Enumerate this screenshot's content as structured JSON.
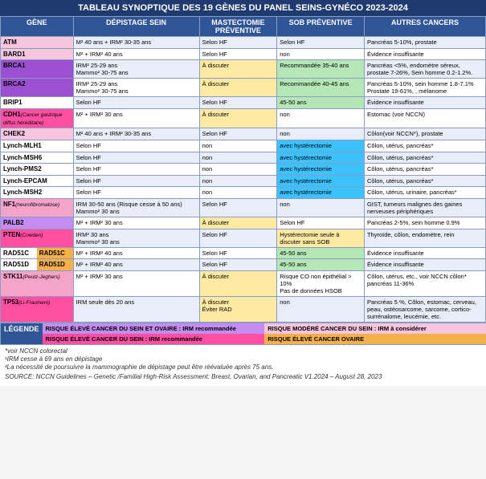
{
  "title": "TABLEAU SYNOPTIQUE DES 19 GÈNES DU PANEL SEINS-GYNÉCO 2023-2024",
  "columns": [
    "GÈNE",
    "DÉPISTAGE SEIN",
    "MASTECTOMIE PRÉVENTIVE",
    "SOB PRÉVENTIVE",
    "AUTRES CANCERS"
  ],
  "colwidths": [
    "15%",
    "26%",
    "16%",
    "18%",
    "25%"
  ],
  "colors": {
    "header_bg": "#2f5597",
    "header_fg": "#ffffff",
    "title_bg": "#1f3a6e",
    "row_odd": "#e8edf7",
    "row_even": "#ffffff",
    "border": "#8a9bc4",
    "alt_green": "#b5e6b5",
    "alt_yellow": "#ffe9a3",
    "sob_blue": "#3cc3ff",
    "gene_palette": {
      "lightpink": "#f7c6de",
      "pink": "#f5a3c8",
      "magenta": "#e860b0",
      "hotpink": "#ff4fa3",
      "purple": "#9b4fd1",
      "violet": "#c38df0",
      "lavender": "#d7bff2",
      "plum": "#b657c4",
      "white": "#ffffff",
      "orange": "#f4b04a"
    }
  },
  "rows": [
    {
      "gene": "ATM",
      "gc": "lightpink",
      "dep": "M² 40 ans + IRM² 30-35 ans",
      "mast": "Selon HF",
      "sob": "Selon HF",
      "other": "Pancréas 5-10%, prostate"
    },
    {
      "gene": "BARD1",
      "gc": "lightpink",
      "dep": "M² + IRM² 40 ans",
      "mast": "Selon HF",
      "sob": "non",
      "other": "Évidence insuffisante"
    },
    {
      "gene": "BRCA1",
      "gc": "purple",
      "dep": "IRM² 25-29 ans\nMammo² 30-75 ans",
      "mast": "À discuter",
      "mast_cls": "alt-b",
      "sob": "Recommandée 35-40 ans",
      "sob_cls": "alt-a",
      "other": "Pancréas <5%, endomètre séreux, prostate 7-26%, Sein homme 0.2-1.2%."
    },
    {
      "gene": "BRCA2",
      "gc": "purple",
      "dep": "IRM² 25-29 ans\nMammo² 30-75 ans",
      "mast": "À discuter",
      "mast_cls": "alt-b",
      "sob": "Recommandée 40-45 ans",
      "sob_cls": "alt-a",
      "other": "Pancréas 5-10%, sein homme 1.8-7.1%\nProstate 19-61%, , mélanome"
    },
    {
      "gene": "BRIP1",
      "gc": "white",
      "dep": "Selon HF",
      "mast": "Selon HF",
      "sob": "45-50 ans",
      "sob_cls": "alt-a",
      "other": "Évidence insuffisante"
    },
    {
      "gene": "CDH1",
      "sub": "(Cancer gastrique diffus héréditaire)",
      "gc": "hotpink",
      "dep": "M² + IRM² 30 ans",
      "mast": "À discuter",
      "mast_cls": "alt-b",
      "sob": "non",
      "other": "Estomac (voir NCCN)"
    },
    {
      "gene": "CHEK2",
      "gc": "lightpink",
      "dep": "M² 40 ans + IRM² 30-35 ans",
      "mast": "Selon HF",
      "sob": "non",
      "other": "Côlon(voir NCCN*), prostate"
    },
    {
      "gene": "Lynch-MLH1",
      "gc": "white",
      "dep": "Selon HF",
      "mast": "non",
      "sob": "avec hystérectomie",
      "sob_cls": "sob-c",
      "other": "Côlon, utérus, pancréas*"
    },
    {
      "gene": "Lynch-MSH6",
      "gc": "white",
      "dep": "Selon HF",
      "mast": "non",
      "sob": "avec hystérectomie",
      "sob_cls": "sob-c",
      "other": "Côlon, utérus, pancréas*"
    },
    {
      "gene": "Lynch-PMS2",
      "gc": "white",
      "dep": "Selon HF",
      "mast": "non",
      "sob": "avec hystérectomie",
      "sob_cls": "sob-c",
      "other": "Côlon, utérus, pancréas*"
    },
    {
      "gene": "Lynch-EPCAM",
      "gc": "white",
      "dep": "Selon HF",
      "mast": "non",
      "sob": "avec hystérectomie",
      "sob_cls": "sob-c",
      "other": "Côlon, utérus, pancréas*"
    },
    {
      "gene": "Lynch-MSH2",
      "gc": "white",
      "dep": "Selon HF",
      "mast": "non",
      "sob": "avec hystérectomie",
      "sob_cls": "sob-c",
      "other": "Côlon, utérus, urinaire, pancréas*"
    },
    {
      "gene": "NF1",
      "sub": "(neurofibromatose)",
      "gc": "pink",
      "dep": "IRM 30-50 ans (Risque cesse à 50 ans)\nMammo² 30 ans",
      "mast": "Selon HF",
      "sob": "non",
      "other": "GIST, tumeurs malignes des gaines nerveuses périphériques"
    },
    {
      "gene": "PALB2",
      "gc": "violet",
      "dep": "M² + IRM² 30 ans",
      "mast": "À discuter",
      "mast_cls": "alt-b",
      "sob": "Selon HF",
      "other": "Pancréas 2-5%, sein homme 0.9%"
    },
    {
      "gene": "PTEN",
      "sub": "(Cowden)",
      "gc": "hotpink",
      "dep": "IRM² 30 ans\nMammo² 30 ans",
      "mast": "Selon HF",
      "sob": "Hystérectomie seule à discuter sans SOB",
      "sob_cls": "alt-b",
      "other": "Thyroïde, côlon, endomètre, rein"
    },
    {
      "gene": "RAD51C",
      "gene2": "RAD51C",
      "gc": "white",
      "gc2": "orange",
      "dep": "M² + IRM² 40 ans",
      "mast": "Selon HF",
      "sob": "45-50 ans",
      "sob_cls": "alt-a",
      "other": "Évidence insuffisante"
    },
    {
      "gene": "RAD51D",
      "gene2": "RAD51D",
      "gc": "white",
      "gc2": "orange",
      "dep": "M² + IRM² 40 ans",
      "mast": "Selon HF",
      "sob": "45-50 ans",
      "sob_cls": "alt-a",
      "other": "Évidence insuffisante"
    },
    {
      "gene": "STK11",
      "sub": "(Peutz-Jeghers)",
      "gc": "pink",
      "dep": "M² + IRM² 30 ans",
      "mast": "À discuter",
      "mast_cls": "alt-b",
      "sob": "Risque CO non épithélial > 10%\nPas de données HSOB",
      "other": "Côlon, utérus, etc., voir NCCN côlon* pancréas 11-36%"
    },
    {
      "gene": "TP53",
      "sub": "(Li-Fraumeni)",
      "gc": "hotpink",
      "dep": "IRM seule dès 20 ans",
      "mast": "À discuter\nÉviter RAD",
      "mast_cls": "alt-b",
      "sob": "non",
      "other": "Pancréas 5 %, Côlon, estomac, cerveau, peau, ostéosarcome, sarcome, cortico-surrénalome, leucémie, etc."
    }
  ],
  "legend": {
    "label": "LÉGENDE",
    "items": [
      {
        "text": "RISQUE ÉLEVÉ CANCER DU SEIN ET OVAIRE : IRM recommandée",
        "bg": "#c38df0"
      },
      {
        "text": "RISQUE MODÉRÉ CANCER DU SEIN : IRM à considérer",
        "bg": "#f7c6de"
      },
      {
        "text": "RISQUE ÉLEVÉ CANCER DU SEIN : IRM recommandée",
        "bg": "#ff4fa3"
      },
      {
        "text": "RISQUE ÉLEVÉ CANCER OVAIRE",
        "bg": "#f4b04a"
      }
    ]
  },
  "notes": [
    "*voir NCCN colorectal",
    "¹IRM cesse à 69 ans en dépistage",
    "²La nécessité de poursuivre la mammographie de dépistage peut être réévaluée après 75 ans."
  ],
  "source": "SOURCE: NCCN Guidelines – Genetic /Familial High-Risk Assessment: Breast, Ovarian, and Pancreatic V1.2024 – August 28, 2023"
}
